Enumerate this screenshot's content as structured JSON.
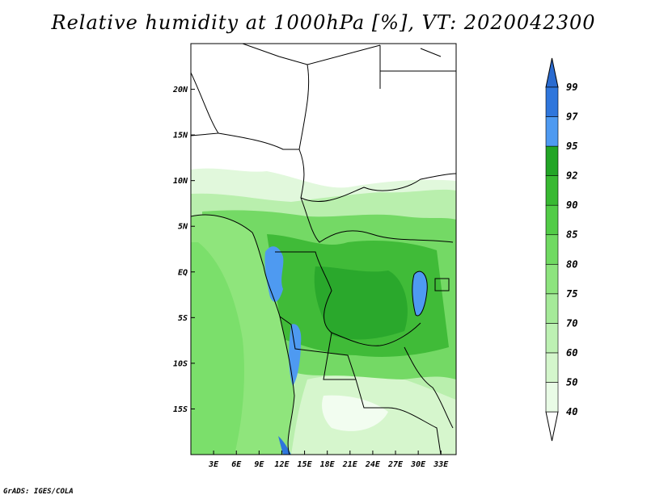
{
  "title": "Relative humidity at 1000hPa [%], VT: 2020042300",
  "credit": "GrADS: IGES/COLA",
  "map": {
    "lat_labels": [
      "20N",
      "15N",
      "10N",
      "5N",
      "EQ",
      "5S",
      "10S",
      "15S"
    ],
    "lat_values": [
      20,
      15,
      10,
      5,
      0,
      -5,
      -10,
      -15
    ],
    "lon_labels": [
      "3E",
      "6E",
      "9E",
      "12E",
      "15E",
      "18E",
      "21E",
      "24E",
      "27E",
      "30E",
      "33E"
    ],
    "lon_values": [
      3,
      6,
      9,
      12,
      15,
      18,
      21,
      24,
      27,
      30,
      33
    ],
    "lon_range": [
      0,
      35
    ],
    "lat_range": [
      -20,
      25
    ]
  },
  "colorbar": {
    "levels": [
      "40",
      "50",
      "60",
      "70",
      "75",
      "80",
      "85",
      "90",
      "92",
      "95",
      "97",
      "99"
    ],
    "colors": [
      "#e9fbe6",
      "#d4f6cc",
      "#bdf1b3",
      "#a5ea99",
      "#8de47e",
      "#70da62",
      "#52cc47",
      "#38b932",
      "#22a526",
      "#4e9af1",
      "#2f76dc",
      "#1f55b8"
    ],
    "below_color": "#ffffff",
    "above_color": "#2a6bd0"
  },
  "colors": {
    "land_bg": "#ffffff",
    "ocean": "#8fe57c",
    "coast": "#000000"
  }
}
